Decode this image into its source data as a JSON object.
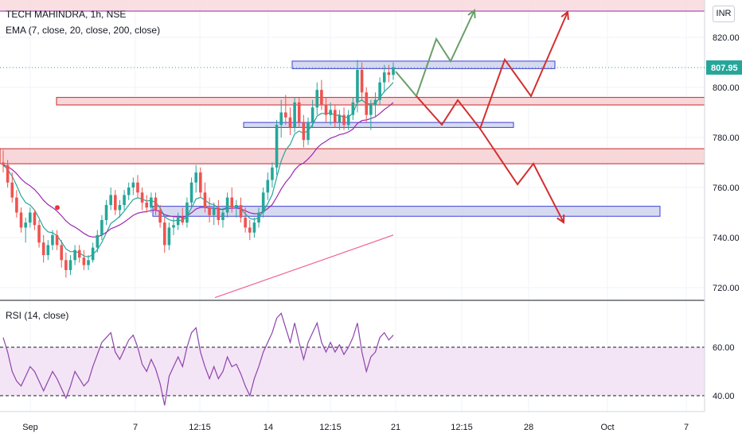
{
  "header": {
    "symbol_line": "TECH MAHINDRA, 1h, NSE",
    "ema_line": "EMA (7, close, 20, close, 200, close)",
    "rsi_line": "RSI (14, close)",
    "currency": "INR"
  },
  "colors": {
    "bull": "#26a69a",
    "bear": "#ef5350",
    "ema7": "#26a69a",
    "ema20": "#9c27b0",
    "ema200": "#f06292",
    "rsi_line": "#8e44ad",
    "rsi_fill": "#f3e5f5",
    "support_box": "#3f3fd4",
    "resistance_box": "#c62828",
    "top_line": "#9c27b0",
    "projection_green": "#6a9e6a",
    "projection_red": "#d32f2f",
    "last_price_badge": "#26a69a"
  },
  "chart_data": [
    {
      "type": "candlestick",
      "price_axis": {
        "ticks": [
          720,
          740,
          760,
          780,
          800,
          820
        ],
        "range": [
          716,
          836
        ],
        "last_price": "807.95"
      },
      "time_axis": {
        "labels": [
          "Sep",
          "7",
          "12:15",
          "14",
          "12:15",
          "21",
          "12:15",
          "28",
          "Oct",
          "7"
        ]
      },
      "candles": [
        [
          770,
          775,
          766,
          769
        ],
        [
          769,
          771,
          760,
          762
        ],
        [
          762,
          766,
          754,
          756
        ],
        [
          756,
          759,
          748,
          750
        ],
        [
          750,
          752,
          742,
          744
        ],
        [
          744,
          748,
          738,
          746
        ],
        [
          746,
          752,
          744,
          750
        ],
        [
          750,
          751,
          743,
          745
        ],
        [
          745,
          747,
          736,
          738
        ],
        [
          738,
          741,
          730,
          733
        ],
        [
          733,
          739,
          731,
          737
        ],
        [
          737,
          743,
          735,
          741
        ],
        [
          741,
          743,
          735,
          737
        ],
        [
          737,
          739,
          728,
          731
        ],
        [
          731,
          734,
          724,
          727
        ],
        [
          727,
          733,
          725,
          731
        ],
        [
          731,
          737,
          729,
          735
        ],
        [
          735,
          737,
          730,
          732
        ],
        [
          732,
          735,
          727,
          729
        ],
        [
          729,
          733,
          727,
          731
        ],
        [
          731,
          738,
          730,
          736
        ],
        [
          736,
          743,
          734,
          741
        ],
        [
          741,
          749,
          739,
          747
        ],
        [
          747,
          755,
          745,
          753
        ],
        [
          753,
          760,
          751,
          757
        ],
        [
          757,
          759,
          749,
          751
        ],
        [
          751,
          755,
          748,
          753
        ],
        [
          753,
          759,
          751,
          757
        ],
        [
          757,
          762,
          755,
          760
        ],
        [
          760,
          764,
          757,
          762
        ],
        [
          762,
          765,
          756,
          758
        ],
        [
          758,
          760,
          751,
          754
        ],
        [
          754,
          757,
          750,
          752
        ],
        [
          752,
          758,
          750,
          756
        ],
        [
          756,
          758,
          749,
          751
        ],
        [
          751,
          753,
          744,
          746
        ],
        [
          746,
          748,
          734,
          737
        ],
        [
          737,
          746,
          735,
          744
        ],
        [
          744,
          748,
          741,
          745
        ],
        [
          745,
          750,
          743,
          748
        ],
        [
          748,
          752,
          745,
          746
        ],
        [
          746,
          756,
          744,
          754
        ],
        [
          754,
          764,
          752,
          762
        ],
        [
          762,
          769,
          758,
          766
        ],
        [
          766,
          768,
          756,
          758
        ],
        [
          758,
          762,
          750,
          752
        ],
        [
          752,
          756,
          746,
          749
        ],
        [
          749,
          754,
          745,
          752
        ],
        [
          752,
          755,
          745,
          747
        ],
        [
          747,
          752,
          744,
          750
        ],
        [
          750,
          758,
          748,
          756
        ],
        [
          756,
          760,
          750,
          752
        ],
        [
          752,
          755,
          748,
          753
        ],
        [
          753,
          756,
          746,
          748
        ],
        [
          748,
          752,
          742,
          744
        ],
        [
          744,
          747,
          739,
          742
        ],
        [
          742,
          748,
          740,
          746
        ],
        [
          746,
          752,
          744,
          750
        ],
        [
          750,
          760,
          748,
          758
        ],
        [
          758,
          766,
          755,
          763
        ],
        [
          763,
          770,
          760,
          768
        ],
        [
          768,
          787,
          765,
          785
        ],
        [
          785,
          795,
          780,
          790
        ],
        [
          790,
          797,
          785,
          788
        ],
        [
          788,
          792,
          781,
          784
        ],
        [
          784,
          796,
          782,
          794
        ],
        [
          794,
          796,
          784,
          786
        ],
        [
          786,
          789,
          776,
          779
        ],
        [
          779,
          788,
          777,
          786
        ],
        [
          786,
          795,
          784,
          792
        ],
        [
          792,
          802,
          789,
          799
        ],
        [
          799,
          803,
          791,
          793
        ],
        [
          793,
          796,
          786,
          789
        ],
        [
          789,
          794,
          785,
          791
        ],
        [
          791,
          793,
          784,
          786
        ],
        [
          786,
          791,
          783,
          789
        ],
        [
          789,
          792,
          783,
          785
        ],
        [
          785,
          791,
          783,
          789
        ],
        [
          789,
          796,
          787,
          794
        ],
        [
          794,
          811,
          790,
          807
        ],
        [
          807,
          810,
          795,
          798
        ],
        [
          798,
          800,
          786,
          789
        ],
        [
          789,
          795,
          783,
          793
        ],
        [
          793,
          798,
          788,
          795
        ],
        [
          795,
          804,
          793,
          802
        ],
        [
          802,
          809,
          798,
          806
        ],
        [
          806,
          809,
          802,
          805
        ],
        [
          805,
          810,
          803,
          808
        ]
      ],
      "ema200_range": [
        716,
        741
      ],
      "rsi": {
        "ticks": [
          40,
          60
        ],
        "bands": [
          40,
          60
        ],
        "values": [
          64,
          58,
          50,
          46,
          44,
          48,
          52,
          50,
          46,
          42,
          46,
          50,
          47,
          43,
          39,
          44,
          50,
          47,
          44,
          46,
          52,
          57,
          62,
          64,
          66,
          58,
          55,
          59,
          63,
          65,
          60,
          53,
          50,
          55,
          51,
          45,
          36,
          48,
          52,
          56,
          52,
          60,
          66,
          68,
          58,
          52,
          47,
          52,
          47,
          50,
          56,
          52,
          53,
          49,
          44,
          40,
          47,
          52,
          58,
          62,
          66,
          72,
          74,
          68,
          62,
          70,
          62,
          55,
          62,
          66,
          70,
          62,
          58,
          62,
          58,
          61,
          57,
          60,
          64,
          70,
          58,
          50,
          56,
          58,
          64,
          66,
          63,
          65
        ]
      }
    }
  ]
}
